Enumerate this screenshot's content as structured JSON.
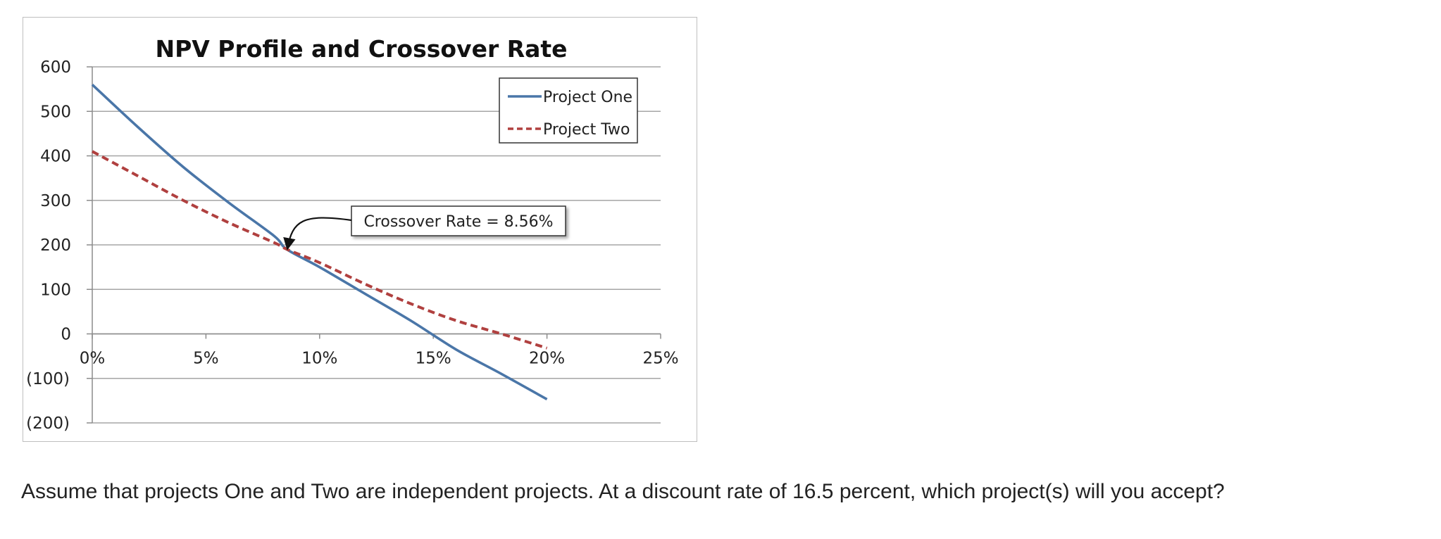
{
  "chart_data": {
    "type": "line",
    "title": "NPV Profile and Crossover Rate",
    "xlabel": "",
    "ylabel": "",
    "x_ticks": [
      0,
      5,
      10,
      15,
      20,
      25
    ],
    "x_tick_labels": [
      "0%",
      "5%",
      "10%",
      "15%",
      "20%",
      "25%"
    ],
    "y_ticks": [
      600,
      500,
      400,
      300,
      200,
      100,
      0,
      -100,
      -200
    ],
    "y_tick_labels": [
      "600",
      "500",
      "400",
      "300",
      "200",
      "100",
      "0",
      "(100)",
      "(200)"
    ],
    "xlim": [
      0,
      25
    ],
    "ylim": [
      -200,
      600
    ],
    "grid": true,
    "legend_position": "top-right",
    "series": [
      {
        "name": "Project One",
        "style": "solid",
        "color": "#4A76A8",
        "x": [
          0,
          2,
          4,
          6,
          8,
          8.56,
          10,
          12,
          14,
          16,
          18,
          20
        ],
        "y": [
          560,
          465,
          375,
          295,
          220,
          190,
          150,
          90,
          30,
          -35,
          -90,
          -147
        ]
      },
      {
        "name": "Project Two",
        "style": "dashed",
        "color": "#B0403F",
        "x": [
          0,
          2,
          4,
          6,
          8,
          8.56,
          10,
          12,
          14,
          16,
          18,
          20
        ],
        "y": [
          410,
          355,
          300,
          250,
          205,
          190,
          160,
          112,
          68,
          30,
          0,
          -32
        ]
      }
    ],
    "annotation": {
      "text": "Crossover Rate = 8.56%",
      "x": 8.56,
      "y": 190
    }
  },
  "question": {
    "text": "Assume that projects One and Two are independent projects. At a discount rate of 16.5 percent, which project(s) will you accept?"
  }
}
